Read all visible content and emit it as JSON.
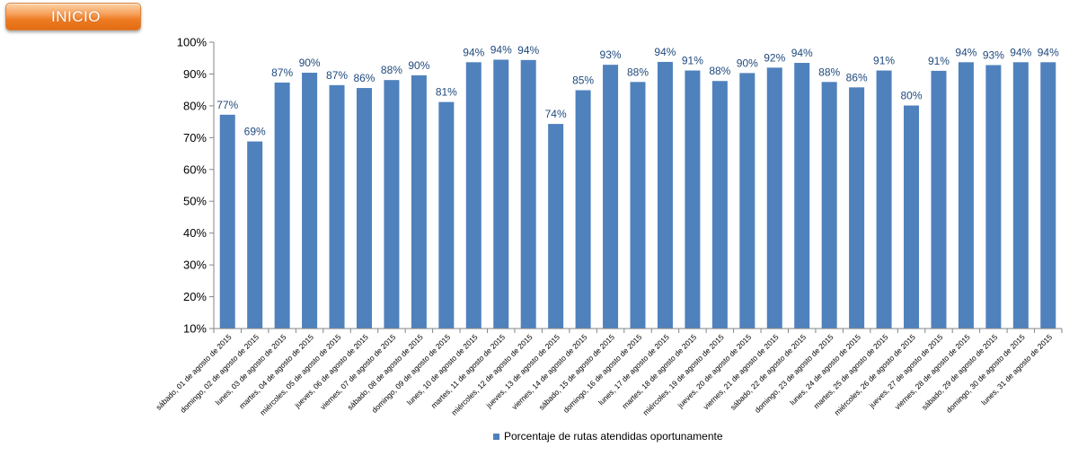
{
  "nav": {
    "inicio_label": "INICIO"
  },
  "chart_data": {
    "type": "bar",
    "categories": [
      "sábado, 01 de agosto de 2015",
      "domingo, 02 de agosto de 2015",
      "lunes, 03 de agosto de 2015",
      "martes, 04 de agosto de 2015",
      "miércoles, 05 de agosto de 2015",
      "jueves, 06 de agosto de 2015",
      "viernes, 07 de agosto de 2015",
      "sábado, 08 de agosto de 2015",
      "domingo, 09 de agosto de 2015",
      "lunes, 10 de agosto de 2015",
      "martes, 11 de agosto de 2015",
      "miércoles, 12 de agosto de 2015",
      "jueves, 13 de agosto de 2015",
      "viernes, 14 de agosto de 2015",
      "sábado, 15 de agosto de 2015",
      "domingo, 16 de agosto de 2015",
      "lunes, 17 de agosto de 2015",
      "martes, 18 de agosto de 2015",
      "miércoles, 19 de agosto de 2015",
      "jueves, 20 de agosto de 2015",
      "viernes, 21 de agosto de 2015",
      "sábado, 22 de agosto de 2015",
      "domingo, 23 de agosto de 2015",
      "lunes, 24 de agosto de 2015",
      "martes, 25 de agosto de 2015",
      "miércoles, 26 de agosto de 2015",
      "jueves, 27 de agosto de 2015",
      "viernes, 28 de agosto de 2015",
      "sábado, 29 de agosto de 2015",
      "domingo, 30 de agosto de 2015",
      "lunes, 31 de agosto de 2015"
    ],
    "series": [
      {
        "name": "Porcentaje de rutas atendidas oportunamente",
        "values": [
          77,
          69,
          87,
          90,
          87,
          86,
          88,
          90,
          81,
          94,
          94,
          94,
          74,
          85,
          93,
          88,
          94,
          91,
          88,
          90,
          92,
          94,
          88,
          86,
          91,
          80,
          91,
          94,
          93,
          94,
          94
        ],
        "display_values": [
          77.2,
          68.8,
          87.3,
          90.4,
          86.5,
          85.6,
          88.1,
          89.6,
          81.2,
          93.7,
          94.5,
          94.4,
          74.3,
          84.9,
          92.9,
          87.5,
          93.8,
          91.1,
          87.8,
          90.3,
          92.0,
          93.5,
          87.5,
          85.8,
          91.1,
          80.1,
          91.0,
          93.7,
          92.8,
          93.7,
          93.7
        ],
        "data_labels": [
          "77%",
          "69%",
          "87%",
          "90%",
          "87%",
          "86%",
          "88%",
          "90%",
          "81%",
          "94%",
          "94%",
          "94%",
          "74%",
          "85%",
          "93%",
          "88%",
          "94%",
          "91%",
          "88%",
          "90%",
          "92%",
          "94%",
          "88%",
          "86%",
          "91%",
          "80%",
          "91%",
          "94%",
          "93%",
          "94%",
          "94%"
        ],
        "color": "#4f81bd"
      }
    ],
    "y_ticks": [
      "10%",
      "20%",
      "30%",
      "40%",
      "50%",
      "60%",
      "70%",
      "80%",
      "90%",
      "100%"
    ],
    "ylim": [
      10,
      100
    ],
    "ylabel_format": "percent",
    "xlabel": "",
    "ylabel": "",
    "title": "",
    "grid": false,
    "legend": {
      "position": "bottom",
      "entries": [
        "Porcentaje de rutas atendidas oportunamente"
      ]
    },
    "colors": {
      "bar": "#4f81bd",
      "data_label": "#1f497d",
      "axis": "#868686",
      "text": "#000000"
    }
  }
}
